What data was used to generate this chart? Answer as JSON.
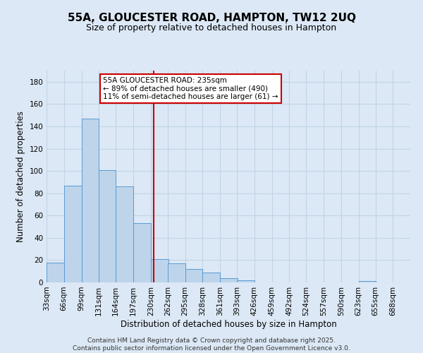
{
  "title": "55A, GLOUCESTER ROAD, HAMPTON, TW12 2UQ",
  "subtitle": "Size of property relative to detached houses in Hampton",
  "xlabel": "Distribution of detached houses by size in Hampton",
  "ylabel": "Number of detached properties",
  "footer_line1": "Contains HM Land Registry data © Crown copyright and database right 2025.",
  "footer_line2": "Contains public sector information licensed under the Open Government Licence v3.0.",
  "annotation_line1": "55A GLOUCESTER ROAD: 235sqm",
  "annotation_line2": "← 89% of detached houses are smaller (490)",
  "annotation_line3": "11% of semi-detached houses are larger (61) →",
  "bar_left_edges": [
    33,
    66,
    99,
    131,
    164,
    197,
    230,
    262,
    295,
    328,
    361,
    393,
    426,
    459,
    492,
    524,
    557,
    590,
    623,
    655
  ],
  "bar_heights": [
    18,
    87,
    147,
    101,
    86,
    53,
    21,
    17,
    12,
    9,
    4,
    2,
    0,
    0,
    0,
    0,
    0,
    0,
    1,
    0
  ],
  "bin_width": 33,
  "bar_color": "#bdd4ea",
  "bar_edge_color": "#5b9bd5",
  "vline_x": 235,
  "vline_color": "#cc0000",
  "ylim": [
    0,
    190
  ],
  "yticks": [
    0,
    20,
    40,
    60,
    80,
    100,
    120,
    140,
    160,
    180
  ],
  "tick_labels": [
    "33sqm",
    "66sqm",
    "99sqm",
    "131sqm",
    "164sqm",
    "197sqm",
    "230sqm",
    "262sqm",
    "295sqm",
    "328sqm",
    "361sqm",
    "393sqm",
    "426sqm",
    "459sqm",
    "492sqm",
    "524sqm",
    "557sqm",
    "590sqm",
    "623sqm",
    "655sqm",
    "688sqm"
  ],
  "bg_color": "#dce8f5",
  "plot_bg_color": "#dce8f5",
  "grid_color": "#c0d4e8",
  "title_fontsize": 11,
  "subtitle_fontsize": 9,
  "axis_label_fontsize": 8.5,
  "tick_fontsize": 7.5,
  "annotation_box_color": "#ffffff",
  "annotation_box_edge": "#cc0000",
  "footer_fontsize": 6.5,
  "footer_color": "#333333"
}
